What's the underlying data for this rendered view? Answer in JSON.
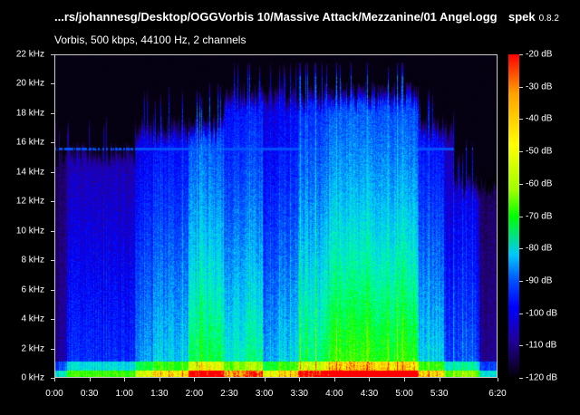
{
  "header": {
    "file_path": "...rs/johannesg/Desktop/OGGVorbis 10/Massive Attack/Mezzanine/01 Angel.ogg",
    "app_name": "spek",
    "app_version": "0.8.2",
    "info": "Vorbis, 500 kbps, 44100 Hz, 2 channels"
  },
  "spectrogram": {
    "duration_seconds": 380,
    "max_frequency_khz": 22,
    "freq_labels": [
      "22 kHz",
      "20 kHz",
      "18 kHz",
      "16 kHz",
      "14 kHz",
      "12 kHz",
      "10 kHz",
      "8 kHz",
      "6 kHz",
      "4 kHz",
      "2 kHz",
      "0 kHz"
    ],
    "time_labels": [
      "0:00",
      "0:30",
      "1:00",
      "1:30",
      "2:00",
      "2:30",
      "3:00",
      "3:30",
      "4:00",
      "4:30",
      "5:00",
      "5:30",
      "6:20"
    ],
    "time_label_seconds": [
      0,
      30,
      60,
      90,
      120,
      150,
      180,
      210,
      240,
      270,
      300,
      330,
      380
    ]
  },
  "color_scale": {
    "labels": [
      "-20 dB",
      "-30 dB",
      "-40 dB",
      "-50 dB",
      "-60 dB",
      "-70 dB",
      "-80 dB",
      "-90 dB",
      "-100 dB",
      "-110 dB",
      "-120 dB"
    ]
  }
}
